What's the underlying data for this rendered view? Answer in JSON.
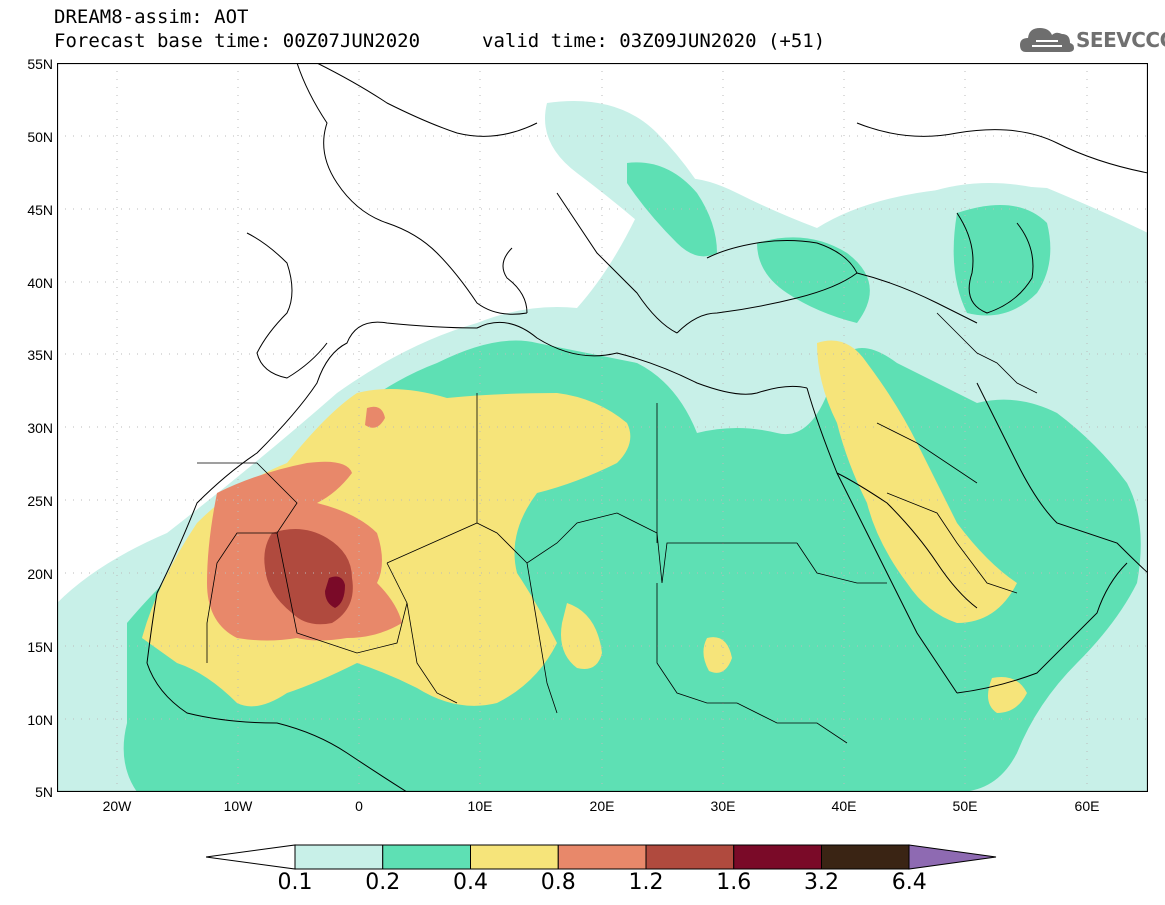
{
  "header": {
    "line1": "DREAM8-assim: AOT",
    "base_time": "Forecast base time: 00Z07JUN2020",
    "valid_time": "valid time: 03Z09JUN2020 (+51)"
  },
  "logo": {
    "text": "SEEVCCC",
    "icon": "cloud-icon"
  },
  "map": {
    "lat_labels": [
      "55N",
      "50N",
      "45N",
      "40N",
      "35N",
      "30N",
      "25N",
      "20N",
      "15N",
      "10N",
      "5N"
    ],
    "lon_labels": [
      "20W",
      "10W",
      "0",
      "10E",
      "20E",
      "30E",
      "40E",
      "50E",
      "60E"
    ]
  },
  "colorbar": {
    "labels": [
      "0.1",
      "0.2",
      "0.4",
      "0.8",
      "1.2",
      "1.6",
      "3.2",
      "6.4"
    ],
    "colors": [
      "#ffffff",
      "#c8f0e8",
      "#5ee0b4",
      "#f6e47a",
      "#e8886a",
      "#b04a3e",
      "#7a0a28",
      "#3a2414",
      "#8e6ab2"
    ]
  }
}
